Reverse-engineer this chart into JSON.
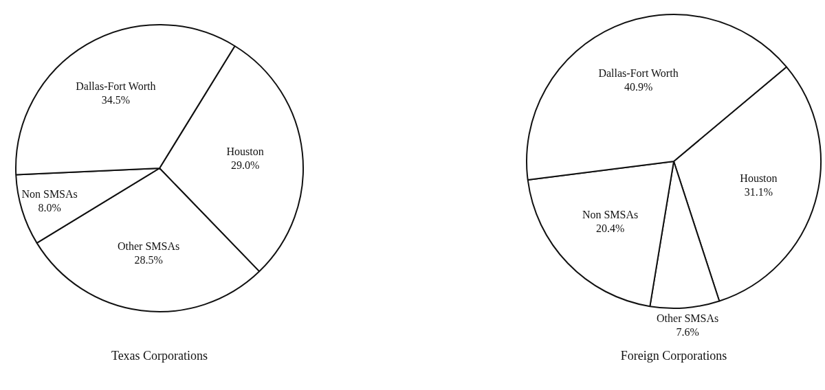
{
  "chart_data": [
    {
      "type": "pie",
      "title": "Texas Corporations",
      "categories": [
        "Houston",
        "Other SMSAs",
        "Non SMSAs",
        "Dallas-Fort Worth"
      ],
      "values": [
        29.0,
        28.5,
        8.0,
        34.5
      ],
      "value_labels": [
        "29.0%",
        "28.5%",
        "8.0%",
        "34.5%"
      ],
      "colors": [
        "#ffffff",
        "#ffffff",
        "#ffffff",
        "#ffffff"
      ],
      "legend": false
    },
    {
      "type": "pie",
      "title": "Foreign Corporations",
      "categories": [
        "Houston",
        "Other SMSAs",
        "Non SMSAs",
        "Dallas-Fort Worth"
      ],
      "values": [
        31.1,
        7.6,
        20.4,
        40.9
      ],
      "value_labels": [
        "31.1%",
        "7.6%",
        "20.4%",
        "40.9%"
      ],
      "colors": [
        "#ffffff",
        "#ffffff",
        "#ffffff",
        "#ffffff"
      ],
      "legend": false
    }
  ]
}
